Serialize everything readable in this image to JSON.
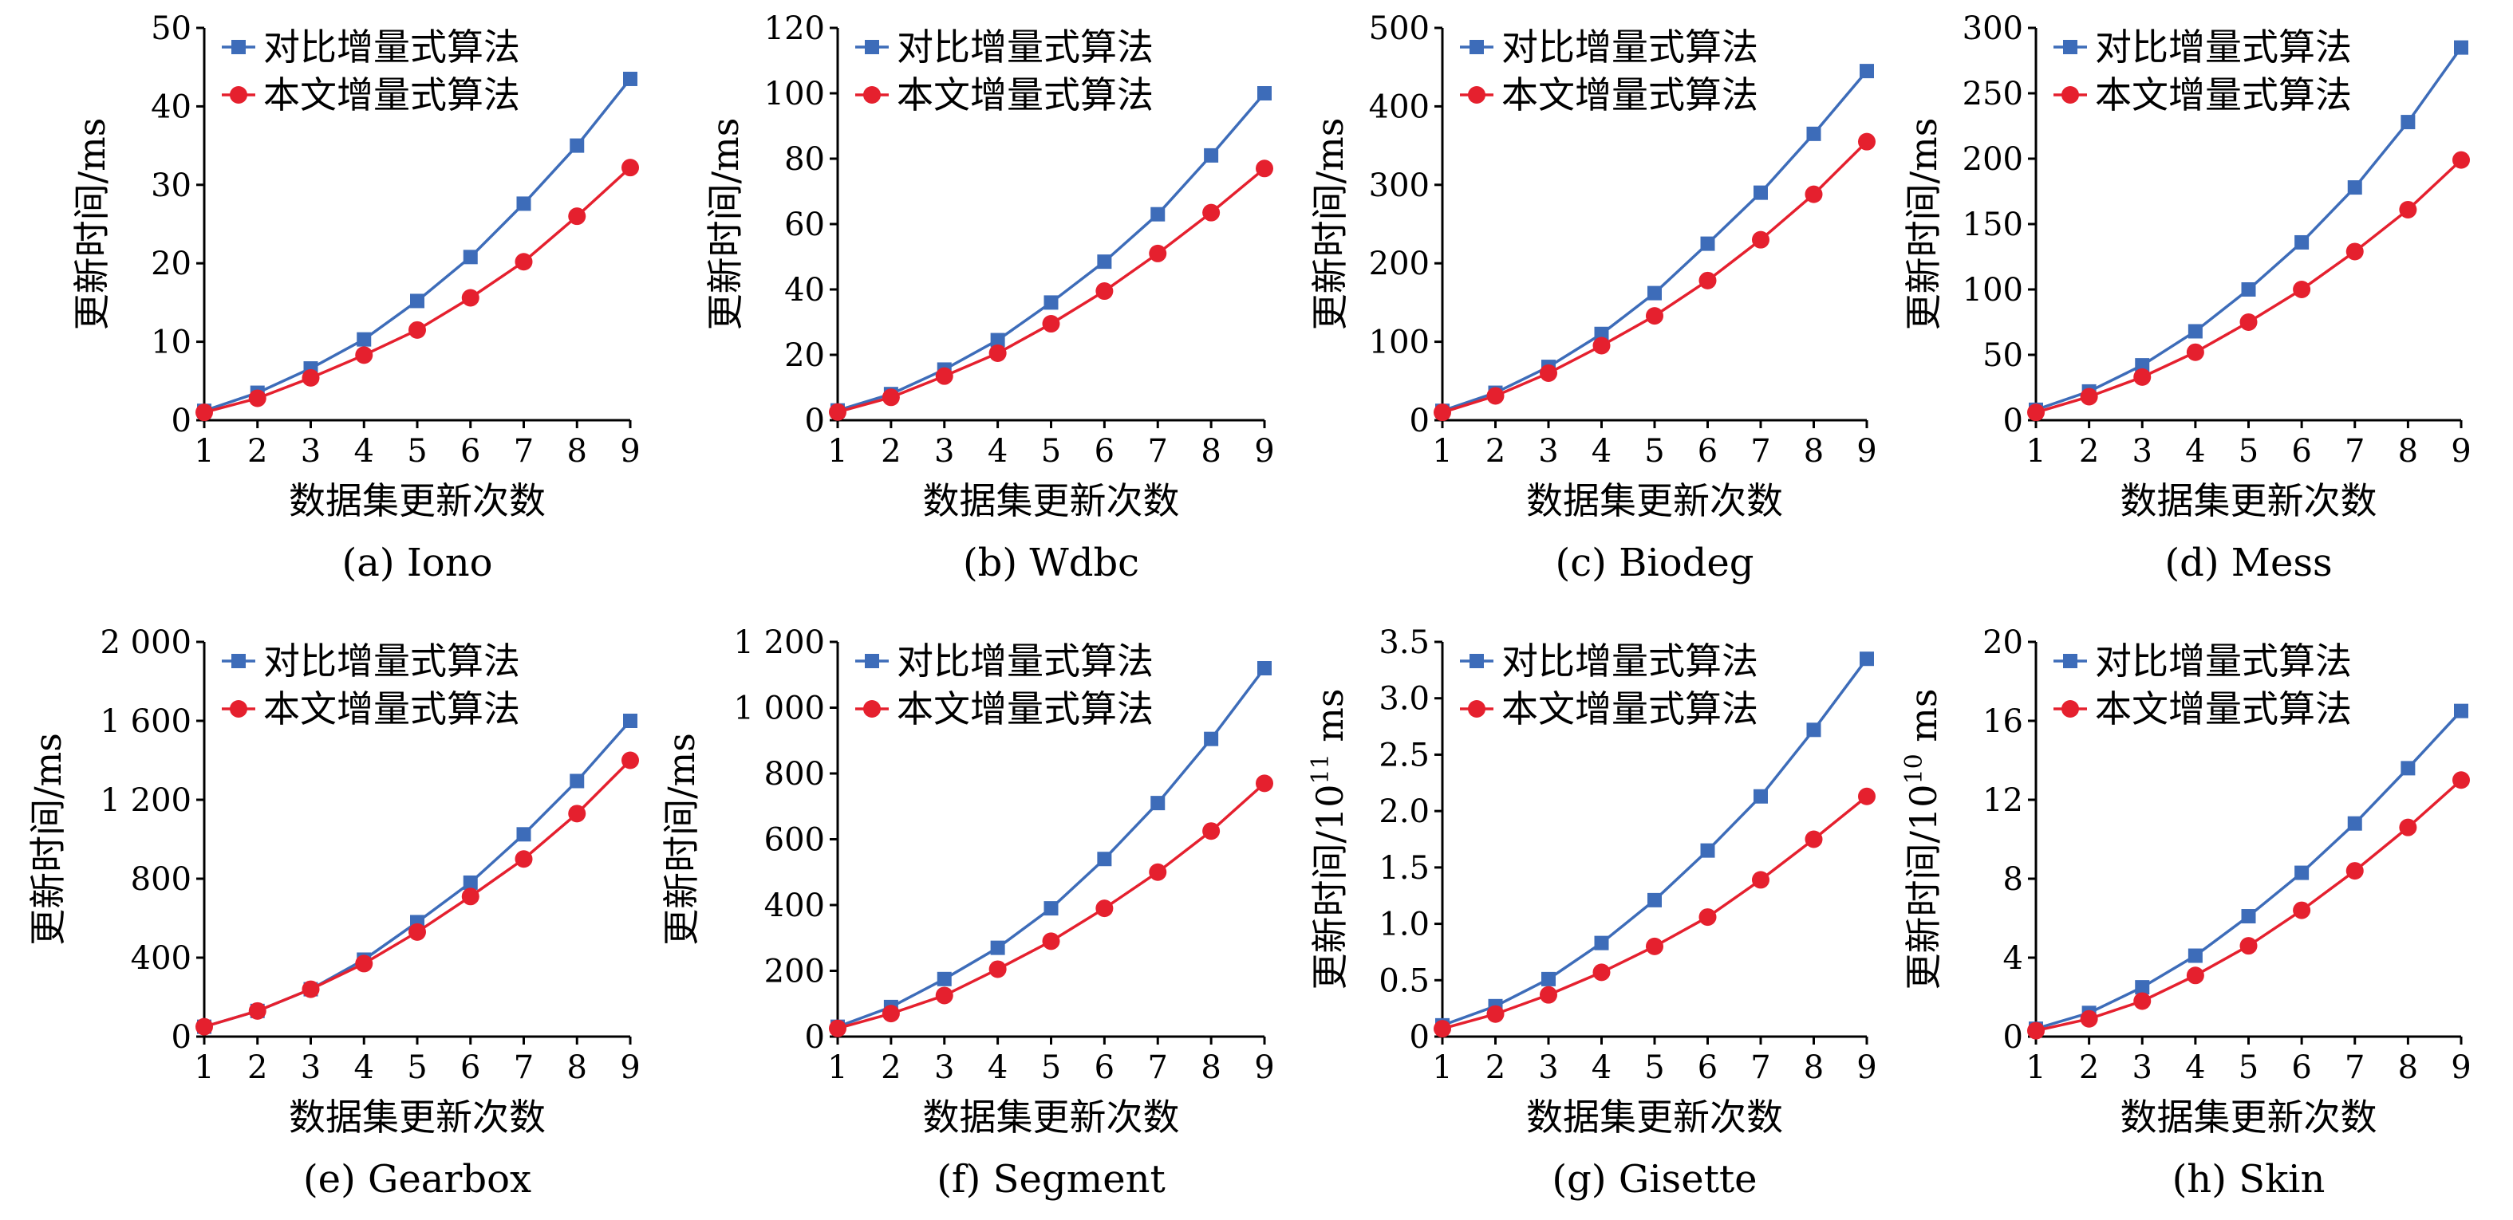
{
  "colors": {
    "series1": "#3D6CB9",
    "series2": "#E5202E",
    "axis": "#000000"
  },
  "chart_data": [
    {
      "type": "line",
      "caption": "(a) Iono",
      "xlabel": "数据集更新次数",
      "ylabel": "更新时间/ms",
      "ylabel_sup": "",
      "ylabel_after": "",
      "x": [
        1,
        2,
        3,
        4,
        5,
        6,
        7,
        8,
        9
      ],
      "ylim": [
        0,
        50
      ],
      "yticks": [
        0,
        10,
        20,
        30,
        40,
        50
      ],
      "ytick_labels": [
        "0",
        "10",
        "20",
        "30",
        "40",
        "50"
      ],
      "series": [
        {
          "name": "对比增量式算法",
          "marker": "square",
          "values": [
            1.2,
            3.5,
            6.6,
            10.3,
            15.2,
            20.8,
            27.6,
            35.0,
            43.5
          ]
        },
        {
          "name": "本文增量式算法",
          "marker": "circle",
          "values": [
            1.0,
            2.8,
            5.4,
            8.3,
            11.5,
            15.6,
            20.2,
            26.0,
            32.2
          ]
        }
      ]
    },
    {
      "type": "line",
      "caption": "(b) Wdbc",
      "xlabel": "数据集更新次数",
      "ylabel": "更新时间/ms",
      "ylabel_sup": "",
      "ylabel_after": "",
      "x": [
        1,
        2,
        3,
        4,
        5,
        6,
        7,
        8,
        9
      ],
      "ylim": [
        0,
        120
      ],
      "yticks": [
        0,
        20,
        40,
        60,
        80,
        100,
        120
      ],
      "ytick_labels": [
        "0",
        "20",
        "40",
        "60",
        "80",
        "100",
        "120"
      ],
      "series": [
        {
          "name": "对比增量式算法",
          "marker": "square",
          "values": [
            3.0,
            8.0,
            15.5,
            24.5,
            36.0,
            48.5,
            63.0,
            81.0,
            100.0
          ]
        },
        {
          "name": "本文增量式算法",
          "marker": "circle",
          "values": [
            2.5,
            7.0,
            13.5,
            20.5,
            29.5,
            39.5,
            51.0,
            63.5,
            77.0
          ]
        }
      ]
    },
    {
      "type": "line",
      "caption": "(c) Biodeg",
      "xlabel": "数据集更新次数",
      "ylabel": "更新时间/ms",
      "ylabel_sup": "",
      "ylabel_after": "",
      "x": [
        1,
        2,
        3,
        4,
        5,
        6,
        7,
        8,
        9
      ],
      "ylim": [
        0,
        500
      ],
      "yticks": [
        0,
        100,
        200,
        300,
        400,
        500
      ],
      "ytick_labels": [
        "0",
        "100",
        "200",
        "300",
        "400",
        "500"
      ],
      "series": [
        {
          "name": "对比增量式算法",
          "marker": "square",
          "values": [
            12,
            35,
            68,
            110,
            162,
            225,
            290,
            365,
            445
          ]
        },
        {
          "name": "本文增量式算法",
          "marker": "circle",
          "values": [
            10,
            31,
            60,
            95,
            133,
            178,
            230,
            288,
            355
          ]
        }
      ]
    },
    {
      "type": "line",
      "caption": "(d) Mess",
      "xlabel": "数据集更新次数",
      "ylabel": "更新时间/ms",
      "ylabel_sup": "",
      "ylabel_after": "",
      "x": [
        1,
        2,
        3,
        4,
        5,
        6,
        7,
        8,
        9
      ],
      "ylim": [
        0,
        300
      ],
      "yticks": [
        0,
        50,
        100,
        150,
        200,
        250,
        300
      ],
      "ytick_labels": [
        "0",
        "50",
        "100",
        "150",
        "200",
        "250",
        "300"
      ],
      "series": [
        {
          "name": "对比增量式算法",
          "marker": "square",
          "values": [
            8,
            22,
            42,
            68,
            100,
            136,
            178,
            228,
            285
          ]
        },
        {
          "name": "本文增量式算法",
          "marker": "circle",
          "values": [
            6,
            18,
            33,
            52,
            75,
            100,
            129,
            161,
            199
          ]
        }
      ]
    },
    {
      "type": "line",
      "caption": "(e) Gearbox",
      "xlabel": "数据集更新次数",
      "ylabel": "更新时间/ms",
      "ylabel_sup": "",
      "ylabel_after": "",
      "x": [
        1,
        2,
        3,
        4,
        5,
        6,
        7,
        8,
        9
      ],
      "ylim": [
        0,
        2000
      ],
      "yticks": [
        0,
        400,
        800,
        1200,
        1600,
        2000
      ],
      "ytick_labels": [
        "0",
        "400",
        "800",
        "1 200",
        "1 600",
        "2 000"
      ],
      "series": [
        {
          "name": "对比增量式算法",
          "marker": "square",
          "values": [
            50,
            130,
            240,
            390,
            580,
            780,
            1025,
            1295,
            1600
          ]
        },
        {
          "name": "本文增量式算法",
          "marker": "circle",
          "values": [
            50,
            130,
            240,
            370,
            530,
            710,
            900,
            1130,
            1400
          ]
        }
      ]
    },
    {
      "type": "line",
      "caption": "(f) Segment",
      "xlabel": "数据集更新次数",
      "ylabel": "更新时间/ms",
      "ylabel_sup": "",
      "ylabel_after": "",
      "x": [
        1,
        2,
        3,
        4,
        5,
        6,
        7,
        8,
        9
      ],
      "ylim": [
        0,
        1200
      ],
      "yticks": [
        0,
        200,
        400,
        600,
        800,
        1000,
        1200
      ],
      "ytick_labels": [
        "0",
        "200",
        "400",
        "600",
        "800",
        "1 000",
        "1 200"
      ],
      "series": [
        {
          "name": "对比增量式算法",
          "marker": "square",
          "values": [
            30,
            90,
            175,
            270,
            390,
            540,
            710,
            905,
            1120
          ]
        },
        {
          "name": "本文增量式算法",
          "marker": "circle",
          "values": [
            25,
            70,
            125,
            205,
            290,
            390,
            500,
            625,
            770
          ]
        }
      ]
    },
    {
      "type": "line",
      "caption": "(g) Gisette",
      "xlabel": "数据集更新次数",
      "ylabel": "更新时间/10",
      "ylabel_sup": "11",
      "ylabel_after": " ms",
      "x": [
        1,
        2,
        3,
        4,
        5,
        6,
        7,
        8,
        9
      ],
      "ylim": [
        0,
        3.5
      ],
      "yticks": [
        0,
        0.5,
        1.0,
        1.5,
        2.0,
        2.5,
        3.0,
        3.5
      ],
      "ytick_labels": [
        "0",
        "0.5",
        "1.0",
        "1.5",
        "2.0",
        "2.5",
        "3.0",
        "3.5"
      ],
      "series": [
        {
          "name": "对比增量式算法",
          "marker": "square",
          "values": [
            0.1,
            0.27,
            0.51,
            0.83,
            1.21,
            1.65,
            2.13,
            2.72,
            3.35
          ]
        },
        {
          "name": "本文增量式算法",
          "marker": "circle",
          "values": [
            0.07,
            0.2,
            0.37,
            0.57,
            0.8,
            1.06,
            1.39,
            1.75,
            2.13
          ]
        }
      ]
    },
    {
      "type": "line",
      "caption": "(h) Skin",
      "xlabel": "数据集更新次数",
      "ylabel": "更新时间/10",
      "ylabel_sup": "10",
      "ylabel_after": " ms",
      "x": [
        1,
        2,
        3,
        4,
        5,
        6,
        7,
        8,
        9
      ],
      "ylim": [
        0,
        20
      ],
      "yticks": [
        0,
        4,
        8,
        12,
        16,
        20
      ],
      "ytick_labels": [
        "0",
        "4",
        "8",
        "12",
        "16",
        "20"
      ],
      "series": [
        {
          "name": "对比增量式算法",
          "marker": "square",
          "values": [
            0.4,
            1.2,
            2.5,
            4.1,
            6.1,
            8.3,
            10.8,
            13.6,
            16.5
          ]
        },
        {
          "name": "本文增量式算法",
          "marker": "circle",
          "values": [
            0.3,
            0.9,
            1.8,
            3.1,
            4.6,
            6.4,
            8.4,
            10.6,
            13.0
          ]
        }
      ]
    }
  ]
}
